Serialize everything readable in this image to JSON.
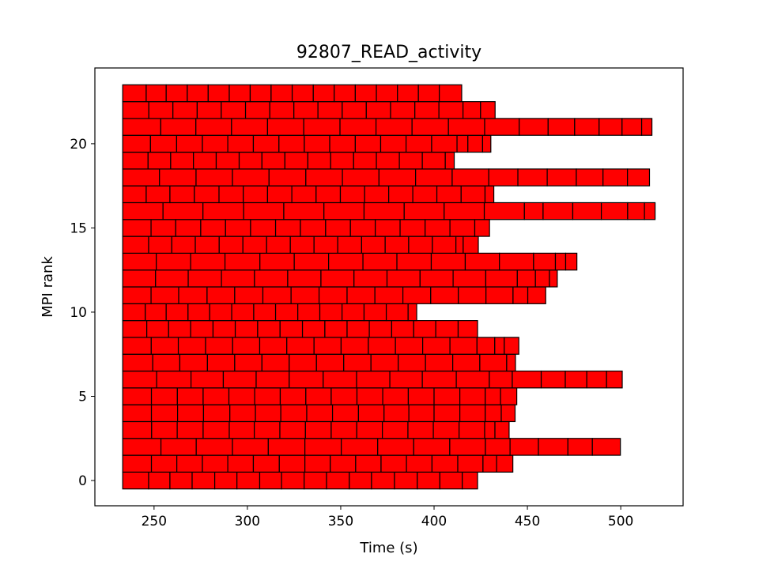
{
  "chart_data": {
    "type": "bar",
    "orientation": "horizontal-segments",
    "title": "92807_READ_activity",
    "xlabel": "Time (s)",
    "ylabel": "MPI rank",
    "xlim": [
      218.3,
      533.4
    ],
    "ylim": [
      -1.5,
      24.5
    ],
    "xticks": [
      250,
      300,
      350,
      400,
      450,
      500
    ],
    "yticks": [
      0,
      5,
      10,
      15,
      20
    ],
    "grid": false,
    "legend": "none",
    "bar_color": "#ff0000",
    "edge_color": "#000000",
    "series": [
      {
        "rank": 0,
        "boundaries": [
          233.2,
          247.1,
          258.5,
          270.4,
          282.5,
          294.4,
          306.6,
          318.3,
          330.4,
          342.4,
          354.6,
          366.5,
          378.8,
          391.0,
          403.1,
          415.1,
          423.3
        ]
      },
      {
        "rank": 1,
        "boundaries": [
          233.2,
          248.6,
          262.2,
          275.9,
          289.5,
          303.2,
          317.1,
          330.8,
          344.4,
          358.0,
          371.6,
          385.2,
          398.9,
          412.7,
          426.2,
          433.5,
          442.2
        ]
      },
      {
        "rank": 2,
        "boundaries": [
          233.2,
          253.7,
          272.6,
          292.0,
          311.2,
          330.8,
          350.3,
          369.8,
          389.1,
          408.4,
          427.5,
          440.7,
          455.9,
          471.7,
          484.8,
          499.8
        ]
      },
      {
        "rank": 3,
        "boundaries": [
          233.2,
          248.7,
          262.4,
          276.3,
          290.3,
          303.7,
          317.4,
          331.1,
          344.9,
          358.6,
          372.3,
          386.0,
          399.6,
          413.4,
          427.1,
          432.6,
          440.2
        ]
      },
      {
        "rank": 4,
        "boundaries": [
          233.2,
          248.6,
          262.6,
          276.5,
          290.6,
          304.3,
          317.9,
          331.8,
          345.6,
          359.5,
          373.2,
          386.5,
          400.0,
          413.8,
          427.4,
          436.0,
          443.4
        ]
      },
      {
        "rank": 5,
        "boundaries": [
          233.2,
          248.6,
          262.5,
          276.3,
          290.1,
          303.9,
          317.6,
          331.3,
          344.9,
          358.7,
          372.5,
          386.2,
          400.0,
          413.8,
          427.4,
          435.6,
          444.3
        ]
      },
      {
        "rank": 6,
        "boundaries": [
          233.2,
          251.4,
          269.8,
          287.1,
          304.7,
          322.4,
          340.6,
          358.5,
          376.3,
          393.7,
          411.9,
          429.6,
          441.9,
          457.4,
          470.3,
          481.8,
          492.4,
          500.8
        ]
      },
      {
        "rank": 7,
        "boundaries": [
          233.2,
          249.3,
          263.8,
          278.6,
          293.2,
          307.8,
          322.4,
          337.0,
          351.6,
          366.2,
          380.8,
          395.4,
          410.0,
          424.5,
          438.9,
          443.6
        ]
      },
      {
        "rank": 8,
        "boundaries": [
          233.2,
          248.5,
          263.0,
          277.6,
          292.1,
          306.6,
          321.1,
          335.7,
          350.2,
          364.8,
          379.3,
          393.9,
          408.5,
          423.0,
          432.5,
          437.6,
          445.4
        ]
      },
      {
        "rank": 9,
        "boundaries": [
          233.2,
          246.1,
          257.8,
          269.6,
          281.6,
          293.5,
          305.5,
          317.5,
          329.5,
          341.5,
          353.4,
          365.3,
          377.3,
          389.1,
          400.9,
          412.9,
          423.3
        ]
      },
      {
        "rank": 10,
        "boundaries": [
          233.2,
          245.3,
          256.5,
          268.2,
          279.8,
          291.6,
          303.4,
          315.1,
          327.0,
          338.8,
          350.7,
          362.5,
          374.4,
          386.1,
          390.7
        ]
      },
      {
        "rank": 11,
        "boundaries": [
          233.2,
          248.4,
          263.2,
          278.4,
          293.2,
          308.3,
          323.4,
          338.4,
          353.4,
          368.3,
          383.3,
          398.2,
          413.0,
          427.8,
          442.3,
          450.2,
          459.8
        ]
      },
      {
        "rank": 12,
        "boundaries": [
          233.2,
          250.8,
          268.3,
          286.1,
          303.8,
          321.6,
          339.4,
          357.1,
          374.8,
          392.5,
          410.2,
          427.7,
          444.6,
          454.3,
          461.8,
          466.0
        ]
      },
      {
        "rank": 13,
        "boundaries": [
          233.2,
          251.2,
          269.6,
          288.0,
          306.7,
          325.1,
          343.5,
          361.9,
          380.1,
          398.5,
          416.7,
          435.0,
          453.3,
          465.0,
          470.5,
          476.5
        ]
      },
      {
        "rank": 14,
        "boundaries": [
          233.2,
          247.1,
          259.5,
          272.1,
          284.9,
          297.6,
          310.3,
          323.0,
          335.7,
          348.4,
          361.2,
          373.8,
          386.4,
          399.1,
          411.7,
          415.6,
          423.7
        ]
      },
      {
        "rank": 15,
        "boundaries": [
          233.2,
          248.4,
          261.6,
          275.0,
          288.3,
          301.7,
          315.1,
          328.4,
          341.9,
          355.2,
          368.5,
          381.8,
          395.2,
          408.5,
          421.8,
          429.7
        ]
      },
      {
        "rank": 16,
        "boundaries": [
          233.2,
          254.8,
          276.2,
          298.0,
          319.5,
          341.0,
          362.5,
          384.0,
          405.4,
          426.9,
          448.4,
          458.4,
          474.3,
          489.6,
          503.7,
          512.7,
          518.4
        ]
      },
      {
        "rank": 17,
        "boundaries": [
          233.2,
          245.8,
          258.5,
          271.6,
          284.8,
          297.8,
          310.8,
          323.8,
          336.8,
          349.8,
          362.8,
          375.7,
          388.6,
          401.5,
          414.5,
          427.3,
          432.0
        ]
      },
      {
        "rank": 18,
        "boundaries": [
          233.2,
          252.9,
          272.5,
          292.0,
          311.6,
          331.3,
          350.9,
          370.5,
          390.1,
          409.7,
          429.3,
          444.9,
          460.6,
          476.2,
          490.5,
          503.6,
          515.4
        ]
      },
      {
        "rank": 19,
        "boundaries": [
          233.2,
          246.8,
          258.9,
          271.1,
          283.3,
          295.6,
          307.8,
          320.1,
          332.4,
          344.6,
          356.9,
          369.1,
          381.4,
          393.7,
          406.0,
          410.8
        ]
      },
      {
        "rank": 20,
        "boundaries": [
          233.2,
          248.1,
          262.1,
          275.9,
          289.5,
          303.2,
          316.9,
          330.5,
          344.1,
          357.8,
          371.4,
          385.0,
          398.7,
          412.3,
          418.1,
          426.0,
          430.4
        ]
      },
      {
        "rank": 21,
        "boundaries": [
          233.2,
          253.6,
          272.4,
          291.5,
          310.8,
          330.2,
          349.6,
          368.9,
          388.2,
          407.7,
          427.1,
          445.6,
          461.1,
          475.3,
          488.4,
          500.7,
          511.2,
          516.7
        ]
      },
      {
        "rank": 22,
        "boundaries": [
          233.2,
          247.2,
          260.1,
          273.1,
          286.0,
          299.0,
          312.0,
          324.9,
          337.8,
          350.8,
          363.7,
          376.7,
          389.7,
          402.6,
          415.5,
          424.9,
          432.7
        ]
      },
      {
        "rank": 23,
        "boundaries": [
          233.2,
          245.8,
          256.5,
          267.8,
          279.0,
          290.3,
          301.5,
          312.7,
          324.0,
          335.3,
          346.5,
          357.8,
          369.1,
          380.4,
          391.6,
          402.8,
          414.8
        ]
      }
    ]
  }
}
